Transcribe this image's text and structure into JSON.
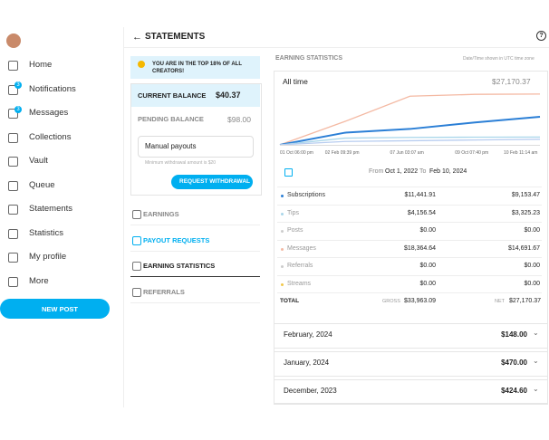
{
  "sidebar": {
    "nav": [
      "Home",
      "Notifications",
      "Messages",
      "Collections",
      "Vault",
      "Queue",
      "Statements",
      "Statistics",
      "My profile",
      "More"
    ],
    "notifications_badge": "3",
    "messages_badge": "3",
    "new_post": "NEW POST"
  },
  "header": {
    "title": "STATEMENTS",
    "help": "?"
  },
  "top_banner": "YOU ARE IN THE TOP 18% OF ALL CREATORS!",
  "balance": {
    "current_label": "CURRENT BALANCE",
    "current": "$40.37",
    "pending_label": "PENDING BALANCE",
    "pending": "$98.00",
    "payout_select": "Manual payouts",
    "minimum_note": "Minimum withdrawal amount is $20",
    "withdraw_button": "REQUEST WITHDRAWAL"
  },
  "tabs": [
    "EARNINGS",
    "PAYOUT REQUESTS",
    "EARNING STATISTICS",
    "REFERRALS"
  ],
  "stats": {
    "title": "EARNING STATISTICS",
    "timezone_note": "Date/Time shown in UTC time zone",
    "period": "All time",
    "period_total": "$27,170.37",
    "chart": {
      "type": "line",
      "x": [
        "01 Oct 06:00 pm",
        "02 Feb 09:39 pm",
        "07 Jun 03:07 am",
        "09 Oct 07:40 pm",
        "10 Feb 11:14 am"
      ],
      "ylim": [
        0,
        30000
      ],
      "series": [
        {
          "color": "#f4b9a3",
          "values": [
            0,
            12500,
            26000,
            27000,
            27170
          ]
        },
        {
          "color": "#2b7fd6",
          "values": [
            0,
            6500,
            8500,
            12000,
            15000
          ]
        },
        {
          "color": "#a9d6ea",
          "values": [
            0,
            3600,
            4000,
            4100,
            4156
          ]
        },
        {
          "color": "#b8cdf0",
          "values": [
            0,
            1800,
            2200,
            2600,
            3000
          ]
        }
      ]
    },
    "range": {
      "from_label": "From",
      "from": "Oct 1, 2022",
      "to_label": "To",
      "to": "Feb 10, 2024"
    },
    "rows": [
      [
        "Subscriptions",
        "$11,441.91",
        "$9,153.47"
      ],
      [
        "Tips",
        "$4,156.54",
        "$3,325.23"
      ],
      [
        "Posts",
        "$0.00",
        "$0.00"
      ],
      [
        "Messages",
        "$18,364.64",
        "$14,691.67"
      ],
      [
        "Referrals",
        "$0.00",
        "$0.00"
      ],
      [
        "Streams",
        "$0.00",
        "$0.00"
      ]
    ],
    "total": {
      "label": "TOTAL",
      "gross_label": "GROSS",
      "gross": "$33,963.09",
      "net_label": "NET",
      "net": "$27,170.37"
    }
  },
  "months": [
    [
      "February, 2024",
      "$148.00"
    ],
    [
      "January, 2024",
      "$470.00"
    ],
    [
      "December, 2023",
      "$424.60"
    ]
  ]
}
